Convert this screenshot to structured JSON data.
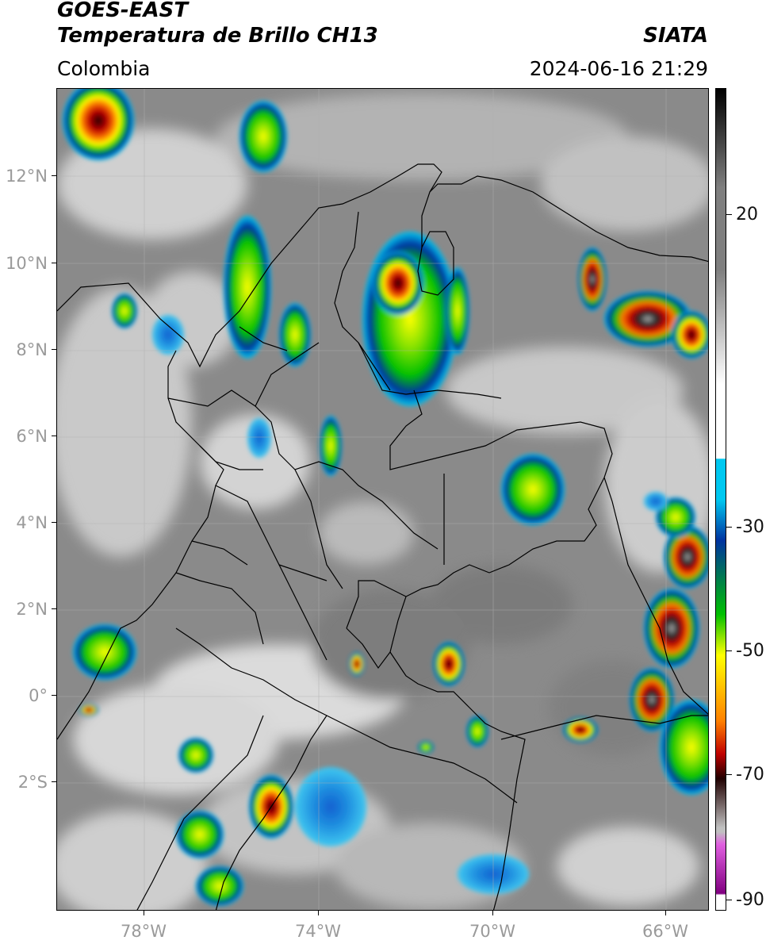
{
  "header": {
    "title_line1": "GOES-EAST",
    "title_line2": "Temperatura de Brillo CH13",
    "region": "Colombia",
    "source": "SIATA",
    "timestamp": "2024-06-16 21:29"
  },
  "map": {
    "lat_labels": [
      "12°N",
      "10°N",
      "8°N",
      "6°N",
      "4°N",
      "2°N",
      "0°",
      "2°S"
    ],
    "lon_labels": [
      "78°W",
      "74°W",
      "70°W",
      "66°W"
    ],
    "colors": {
      "background_gray": "#8a8a8a",
      "cloud_light": "#e6e6e6",
      "border": "#000000"
    }
  },
  "colorbar": {
    "labels": [
      "20",
      "-30",
      "-50",
      "-70",
      "-90"
    ],
    "unit_values": [
      20,
      -30,
      -50,
      -70,
      -90
    ],
    "colors": [
      "#000000",
      "#7f7f7f",
      "#ffffff",
      "#00c8f0",
      "#0033a0",
      "#00c000",
      "#ffff00",
      "#ff8000",
      "#c00000",
      "#200000",
      "#c0c0c0",
      "#e060e0",
      "#800080",
      "#ffffff"
    ]
  }
}
